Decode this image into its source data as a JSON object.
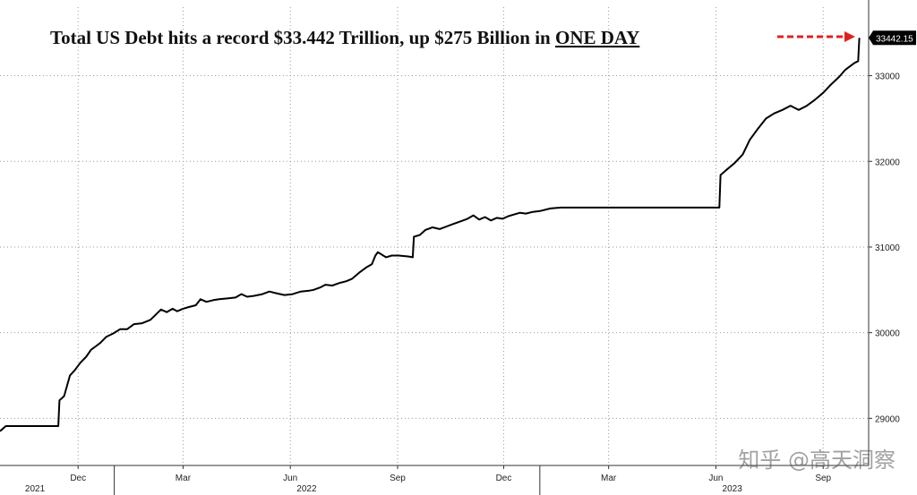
{
  "chart_data": {
    "type": "line",
    "title": "Total US Debt hits a record $33.442 Trillion, up $275 Billion in ONE DAY",
    "title_parts": {
      "lead": "Total US Debt hits a record $33.442 Trillion, up $275 Billion in ",
      "emphasis": "ONE DAY"
    },
    "xlabel": "",
    "ylabel": "",
    "x_type": "date",
    "xlim": [
      "2021-09-25",
      "2023-10-10"
    ],
    "ylim": [
      28450,
      33800
    ],
    "yticks": [
      29000,
      30000,
      31000,
      32000,
      33000
    ],
    "ytick_labels": [
      "29000",
      "30000",
      "31000",
      "32000",
      "33000"
    ],
    "xticks": [
      {
        "date": "2021-12-01",
        "label": "Dec"
      },
      {
        "date": "2022-03-01",
        "label": "Mar"
      },
      {
        "date": "2022-06-01",
        "label": "Jun"
      },
      {
        "date": "2022-09-01",
        "label": "Sep"
      },
      {
        "date": "2022-12-01",
        "label": "Dec"
      },
      {
        "date": "2023-03-01",
        "label": "Mar"
      },
      {
        "date": "2023-06-01",
        "label": "Jun"
      },
      {
        "date": "2023-09-01",
        "label": "Sep"
      }
    ],
    "year_labels": [
      {
        "date": "2021-10-25",
        "label": "2021"
      },
      {
        "date": "2022-06-15",
        "label": "2022"
      },
      {
        "date": "2023-06-15",
        "label": "2023"
      }
    ],
    "year_separators": [
      "2022-01-01",
      "2023-01-01"
    ],
    "grid": true,
    "axis_side": "right",
    "last_value_label": "33442.15",
    "series": [
      {
        "color": "#000000",
        "points": [
          [
            "2021-09-25",
            28850
          ],
          [
            "2021-09-30",
            28910
          ],
          [
            "2021-11-14",
            28910
          ],
          [
            "2021-11-15",
            29210
          ],
          [
            "2021-11-19",
            29260
          ],
          [
            "2021-11-24",
            29500
          ],
          [
            "2021-11-28",
            29560
          ],
          [
            "2021-12-03",
            29650
          ],
          [
            "2021-12-08",
            29720
          ],
          [
            "2021-12-12",
            29800
          ],
          [
            "2021-12-16",
            29840
          ],
          [
            "2021-12-20",
            29880
          ],
          [
            "2021-12-25",
            29950
          ],
          [
            "2021-12-31",
            29990
          ],
          [
            "2022-01-06",
            30040
          ],
          [
            "2022-01-12",
            30040
          ],
          [
            "2022-01-18",
            30100
          ],
          [
            "2022-01-25",
            30110
          ],
          [
            "2022-02-01",
            30150
          ],
          [
            "2022-02-07",
            30230
          ],
          [
            "2022-02-10",
            30270
          ],
          [
            "2022-02-15",
            30240
          ],
          [
            "2022-02-20",
            30280
          ],
          [
            "2022-02-24",
            30250
          ],
          [
            "2022-03-01",
            30280
          ],
          [
            "2022-03-06",
            30300
          ],
          [
            "2022-03-12",
            30320
          ],
          [
            "2022-03-16",
            30390
          ],
          [
            "2022-03-21",
            30360
          ],
          [
            "2022-03-27",
            30380
          ],
          [
            "2022-04-01",
            30390
          ],
          [
            "2022-04-08",
            30400
          ],
          [
            "2022-04-15",
            30410
          ],
          [
            "2022-04-20",
            30450
          ],
          [
            "2022-04-25",
            30420
          ],
          [
            "2022-05-01",
            30430
          ],
          [
            "2022-05-08",
            30450
          ],
          [
            "2022-05-14",
            30480
          ],
          [
            "2022-05-20",
            30460
          ],
          [
            "2022-05-27",
            30440
          ],
          [
            "2022-06-03",
            30450
          ],
          [
            "2022-06-10",
            30480
          ],
          [
            "2022-06-17",
            30490
          ],
          [
            "2022-06-21",
            30500
          ],
          [
            "2022-06-27",
            30530
          ],
          [
            "2022-07-01",
            30560
          ],
          [
            "2022-07-07",
            30550
          ],
          [
            "2022-07-13",
            30580
          ],
          [
            "2022-07-19",
            30600
          ],
          [
            "2022-07-24",
            30630
          ],
          [
            "2022-07-30",
            30700
          ],
          [
            "2022-08-05",
            30760
          ],
          [
            "2022-08-10",
            30800
          ],
          [
            "2022-08-13",
            30900
          ],
          [
            "2022-08-15",
            30940
          ],
          [
            "2022-08-22",
            30880
          ],
          [
            "2022-08-27",
            30900
          ],
          [
            "2022-09-02",
            30900
          ],
          [
            "2022-09-10",
            30890
          ],
          [
            "2022-09-14",
            30880
          ],
          [
            "2022-09-15",
            31120
          ],
          [
            "2022-09-20",
            31140
          ],
          [
            "2022-09-25",
            31200
          ],
          [
            "2022-10-01",
            31230
          ],
          [
            "2022-10-07",
            31210
          ],
          [
            "2022-10-13",
            31240
          ],
          [
            "2022-10-19",
            31270
          ],
          [
            "2022-10-25",
            31300
          ],
          [
            "2022-10-31",
            31330
          ],
          [
            "2022-11-05",
            31370
          ],
          [
            "2022-11-10",
            31320
          ],
          [
            "2022-11-15",
            31350
          ],
          [
            "2022-11-20",
            31310
          ],
          [
            "2022-11-25",
            31340
          ],
          [
            "2022-11-30",
            31330
          ],
          [
            "2022-12-05",
            31360
          ],
          [
            "2022-12-10",
            31380
          ],
          [
            "2022-12-15",
            31400
          ],
          [
            "2022-12-20",
            31390
          ],
          [
            "2022-12-26",
            31410
          ],
          [
            "2023-01-01",
            31420
          ],
          [
            "2023-01-10",
            31450
          ],
          [
            "2023-01-19",
            31460
          ],
          [
            "2023-02-01",
            31460
          ],
          [
            "2023-03-01",
            31460
          ],
          [
            "2023-04-01",
            31460
          ],
          [
            "2023-05-01",
            31460
          ],
          [
            "2023-06-01",
            31460
          ],
          [
            "2023-06-04",
            31460
          ],
          [
            "2023-06-05",
            31840
          ],
          [
            "2023-06-10",
            31900
          ],
          [
            "2023-06-17",
            31980
          ],
          [
            "2023-06-24",
            32080
          ],
          [
            "2023-06-30",
            32250
          ],
          [
            "2023-07-07",
            32380
          ],
          [
            "2023-07-14",
            32500
          ],
          [
            "2023-07-21",
            32560
          ],
          [
            "2023-07-28",
            32600
          ],
          [
            "2023-08-04",
            32650
          ],
          [
            "2023-08-11",
            32600
          ],
          [
            "2023-08-18",
            32650
          ],
          [
            "2023-08-25",
            32720
          ],
          [
            "2023-09-01",
            32800
          ],
          [
            "2023-09-08",
            32900
          ],
          [
            "2023-09-15",
            32990
          ],
          [
            "2023-09-20",
            33070
          ],
          [
            "2023-09-25",
            33120
          ],
          [
            "2023-09-28",
            33150
          ],
          [
            "2023-10-01",
            33170
          ],
          [
            "2023-10-02",
            33442
          ]
        ]
      }
    ]
  },
  "watermark": "知乎 @高天洞察",
  "colors": {
    "line": "#000000",
    "arrow": "#e02020",
    "last_label_bg": "#000000",
    "grid": "#999999"
  }
}
